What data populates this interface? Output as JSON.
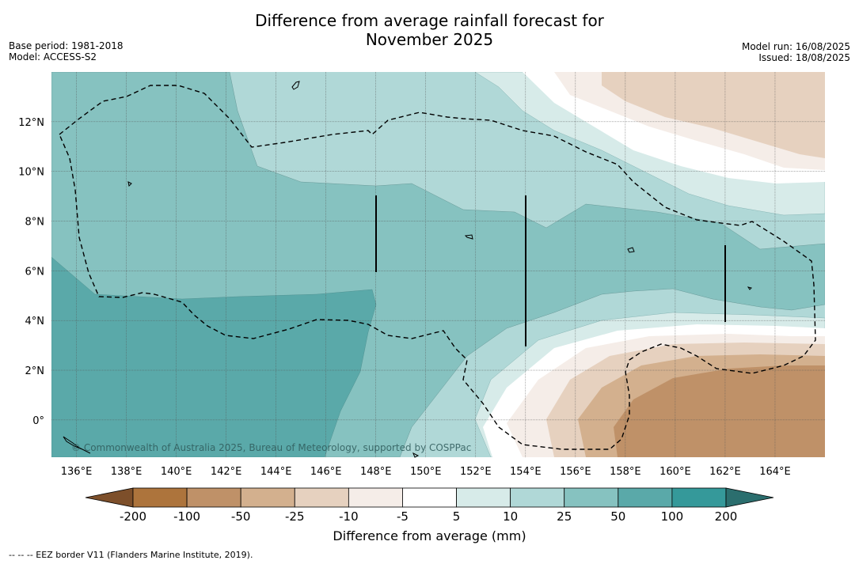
{
  "title_line1": "Difference from average rainfall forecast for",
  "title_line2": "November 2025",
  "meta_left": [
    "Base period: 1981-2018",
    "Model: ACCESS-S2"
  ],
  "meta_right": [
    "Model run: 16/08/2025",
    "Issued: 18/08/2025"
  ],
  "map": {
    "lon_range": [
      135,
      166
    ],
    "lat_range": [
      -1.5,
      14
    ],
    "lon_ticks": [
      "136°E",
      "138°E",
      "140°E",
      "142°E",
      "144°E",
      "146°E",
      "148°E",
      "150°E",
      "152°E",
      "154°E",
      "156°E",
      "158°E",
      "160°E",
      "162°E",
      "164°E"
    ],
    "lat_ticks": [
      "0°",
      "2°N",
      "4°N",
      "6°N",
      "8°N",
      "10°N",
      "12°N"
    ],
    "copyright": "© Commonwealth of Australia 2025, Bureau of Meteorology, supported by COSPPac"
  },
  "colorbar": {
    "title": "Difference from average (mm)",
    "tick_labels": [
      "-200",
      "-100",
      "-50",
      "-25",
      "-10",
      "-5",
      "5",
      "10",
      "25",
      "50",
      "100",
      "200"
    ],
    "colors": [
      "#7d4f2a",
      "#ad743c",
      "#bf9168",
      "#d3b08e",
      "#e6d1bf",
      "#f5ede8",
      "#ffffff",
      "#d7ebe9",
      "#b0d8d7",
      "#86c2c0",
      "#5aa9a9",
      "#35999a",
      "#2b6e6e"
    ]
  },
  "footnote": "-- -- -- EEZ border V11 (Flanders Marine Institute, 2019)."
}
